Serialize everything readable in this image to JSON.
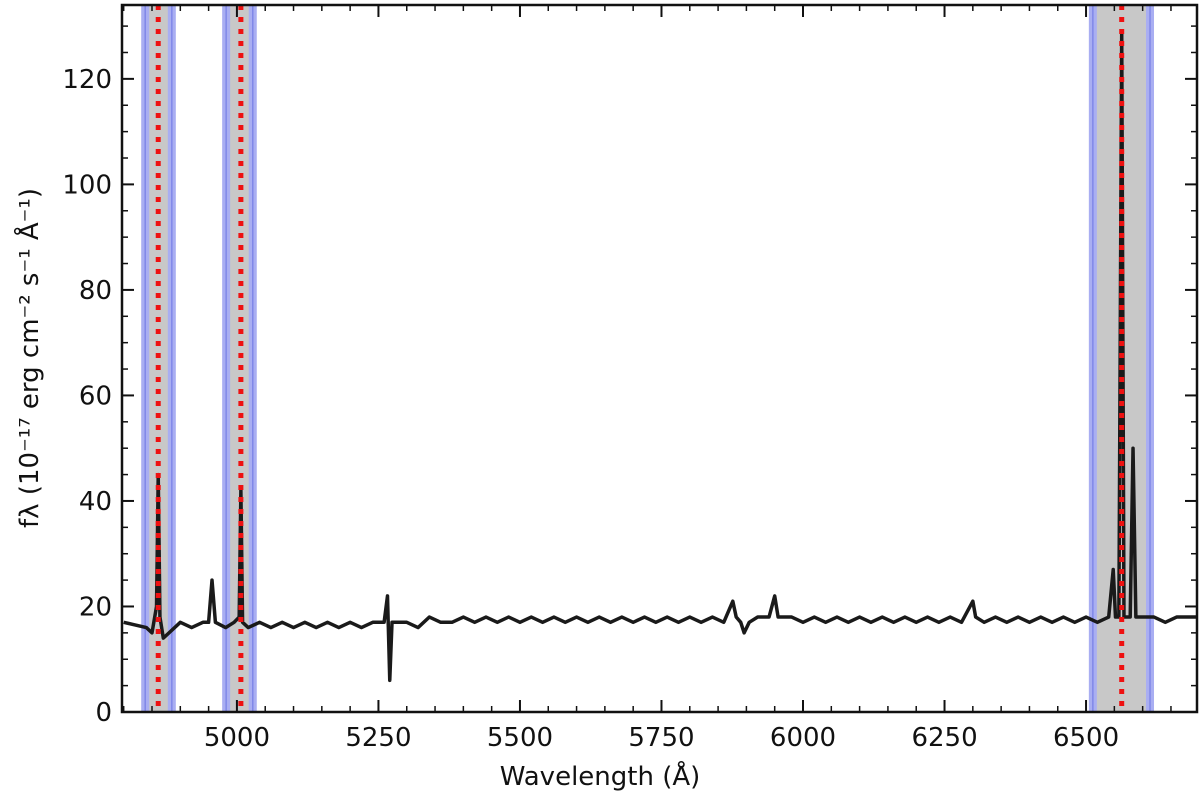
{
  "chart_data": {
    "type": "line",
    "xlabel": "Wavelength (Å)",
    "ylabel": "fλ (10⁻¹⁷ erg cm⁻² s⁻¹ Å⁻¹)",
    "xlim": [
      4797,
      6696
    ],
    "ylim": [
      0,
      134
    ],
    "xticks": [
      5000,
      5250,
      5500,
      5750,
      6000,
      6250,
      6500
    ],
    "yticks": [
      0,
      20,
      40,
      60,
      80,
      100,
      120
    ],
    "spans": [
      {
        "xmin": 4838,
        "xmax": 4885
      },
      {
        "xmin": 4981,
        "xmax": 5028
      },
      {
        "xmin": 6512,
        "xmax": 6613
      }
    ],
    "span_color": "#c8c8c8",
    "span_edge_color": "#a9aef2",
    "vlines": [
      4861,
      5007,
      6563
    ],
    "vline_color": "#ee1111",
    "series": [
      {
        "color": "#1a1a1a",
        "x": [
          4800,
          4820,
          4840,
          4850,
          4858,
          4861,
          4864,
          4870,
          4880,
          4900,
          4920,
          4940,
          4950,
          4956,
          4962,
          4980,
          4995,
          5004,
          5007,
          5010,
          5020,
          5040,
          5060,
          5080,
          5100,
          5120,
          5140,
          5160,
          5180,
          5200,
          5220,
          5240,
          5260,
          5266,
          5270,
          5274,
          5300,
          5320,
          5340,
          5360,
          5380,
          5400,
          5420,
          5440,
          5460,
          5480,
          5500,
          5520,
          5540,
          5560,
          5580,
          5600,
          5620,
          5640,
          5660,
          5680,
          5700,
          5720,
          5740,
          5760,
          5780,
          5800,
          5820,
          5840,
          5860,
          5876,
          5882,
          5890,
          5896,
          5905,
          5920,
          5940,
          5950,
          5956,
          5980,
          6000,
          6020,
          6040,
          6060,
          6080,
          6100,
          6120,
          6140,
          6160,
          6180,
          6200,
          6220,
          6240,
          6260,
          6280,
          6300,
          6305,
          6320,
          6340,
          6360,
          6380,
          6400,
          6420,
          6440,
          6460,
          6480,
          6500,
          6520,
          6540,
          6548,
          6552,
          6558,
          6563,
          6567,
          6578,
          6583,
          6588,
          6600,
          6620,
          6640,
          6660,
          6680,
          6696
        ],
        "values": [
          17,
          16.5,
          16,
          15,
          20,
          45,
          18,
          14,
          15,
          17,
          16,
          17,
          17,
          25,
          17,
          16,
          17,
          18,
          42,
          17,
          16,
          17,
          16,
          17,
          16,
          17,
          16,
          17,
          16,
          17,
          16,
          17,
          17,
          22,
          6,
          17,
          17,
          16,
          18,
          17,
          17,
          18,
          17,
          18,
          17,
          18,
          17,
          18,
          17,
          18,
          17,
          18,
          17,
          18,
          17,
          18,
          17,
          18,
          17,
          18,
          17,
          18,
          17,
          18,
          17,
          21,
          18,
          17,
          15,
          17,
          18,
          18,
          22,
          18,
          18,
          17,
          18,
          17,
          18,
          17,
          18,
          17,
          18,
          17,
          18,
          17,
          18,
          17,
          18,
          17,
          21,
          18,
          17,
          18,
          17,
          18,
          17,
          18,
          17,
          18,
          17,
          18,
          17,
          18,
          27,
          18,
          18,
          129,
          18,
          18,
          50,
          18,
          18,
          18,
          17,
          18,
          18,
          18
        ]
      }
    ]
  }
}
